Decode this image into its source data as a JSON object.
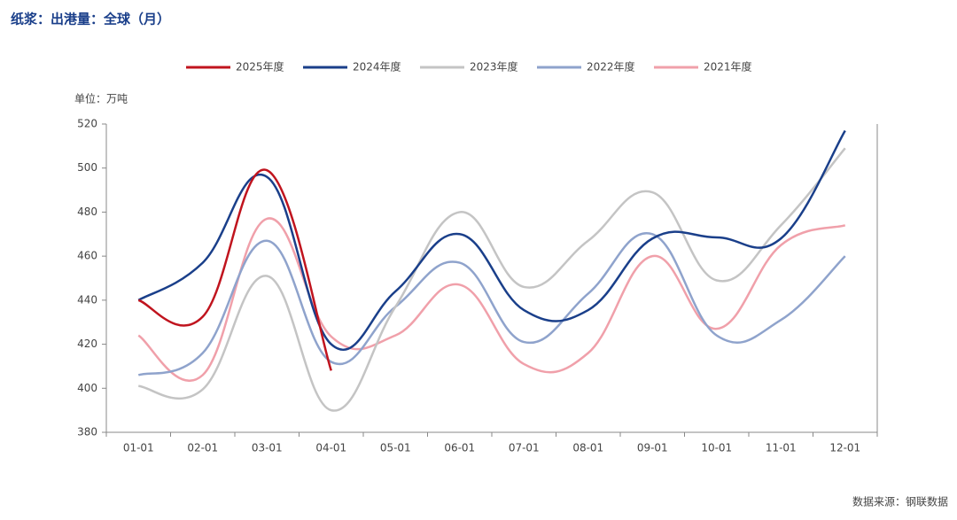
{
  "chart_data": {
    "type": "line",
    "title": "纸浆：出港量：全球（月）",
    "unit": "单位：万吨",
    "source": "数据来源：钢联数据",
    "categories": [
      "01-01",
      "02-01",
      "03-01",
      "04-01",
      "05-01",
      "06-01",
      "07-01",
      "08-01",
      "09-01",
      "10-01",
      "11-01",
      "12-01"
    ],
    "series": [
      {
        "name": "2025年度",
        "color": "#c0141e",
        "values": [
          440,
          432.5,
          499,
          408,
          null,
          null,
          null,
          null,
          null,
          null,
          null,
          null
        ]
      },
      {
        "name": "2024年度",
        "color": "#1a3f8a",
        "values": [
          440,
          457,
          496,
          420,
          444,
          470,
          435.5,
          435.5,
          468,
          468.5,
          468,
          517
        ]
      },
      {
        "name": "2023年度",
        "color": "#c4c4c4",
        "values": [
          401,
          399.5,
          451,
          390,
          437,
          480,
          446,
          467,
          489,
          449,
          474,
          509
        ]
      },
      {
        "name": "2022年度",
        "color": "#8fa3cc",
        "values": [
          406,
          416,
          467,
          412,
          437,
          457,
          421,
          443,
          470,
          424,
          431,
          460
        ]
      },
      {
        "name": "2021年度",
        "color": "#f0a0aa",
        "values": [
          424,
          406,
          477,
          423.5,
          424,
          447,
          411,
          416,
          460,
          427,
          465,
          474
        ]
      }
    ],
    "ylim": [
      380,
      520
    ],
    "yticks": [
      380,
      400,
      420,
      440,
      460,
      480,
      500,
      520
    ],
    "grid": false,
    "legend": "top"
  }
}
